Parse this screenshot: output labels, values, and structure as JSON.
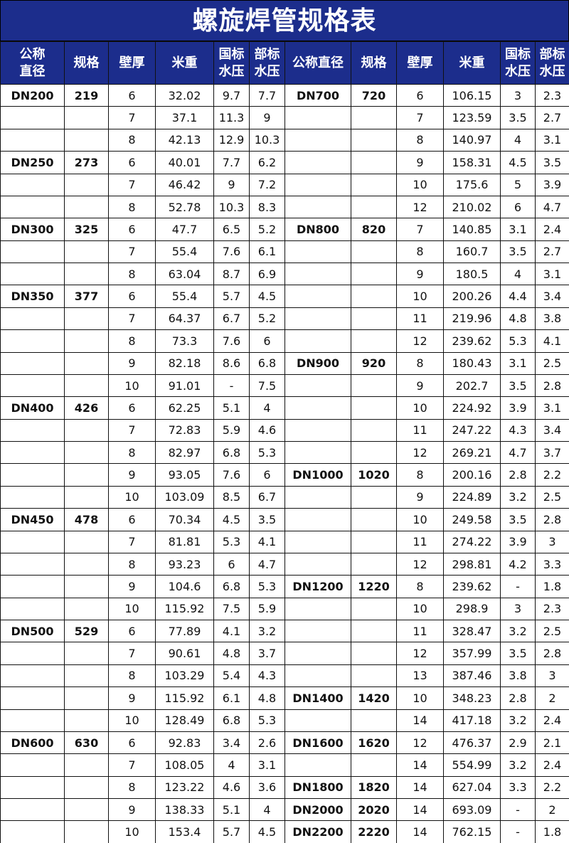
{
  "title": "螺旋焊管规格表",
  "colors": {
    "header_bg": "#1c2d8c",
    "header_text": "#ffffff"
  },
  "headers": [
    "公称\n直径",
    "规格",
    "壁厚",
    "米重",
    "国标\n水压",
    "部标\n水压",
    "公称直径",
    "规格",
    "壁厚",
    "米重",
    "国标\n水压",
    "部标\n水压"
  ],
  "left_rows": [
    [
      "DN200",
      "219",
      "6",
      "32.02",
      "9.7",
      "7.7"
    ],
    [
      "",
      "",
      "7",
      "37.1",
      "11.3",
      "9"
    ],
    [
      "",
      "",
      "8",
      "42.13",
      "12.9",
      "10.3"
    ],
    [
      "DN250",
      "273",
      "6",
      "40.01",
      "7.7",
      "6.2"
    ],
    [
      "",
      "",
      "7",
      "46.42",
      "9",
      "7.2"
    ],
    [
      "",
      "",
      "8",
      "52.78",
      "10.3",
      "8.3"
    ],
    [
      "DN300",
      "325",
      "6",
      "47.7",
      "6.5",
      "5.2"
    ],
    [
      "",
      "",
      "7",
      "55.4",
      "7.6",
      "6.1"
    ],
    [
      "",
      "",
      "8",
      "63.04",
      "8.7",
      "6.9"
    ],
    [
      "DN350",
      "377",
      "6",
      "55.4",
      "5.7",
      "4.5"
    ],
    [
      "",
      "",
      "7",
      "64.37",
      "6.7",
      "5.2"
    ],
    [
      "",
      "",
      "8",
      "73.3",
      "7.6",
      "6"
    ],
    [
      "",
      "",
      "9",
      "82.18",
      "8.6",
      "6.8"
    ],
    [
      "",
      "",
      "10",
      "91.01",
      "-",
      "7.5"
    ],
    [
      "DN400",
      "426",
      "6",
      "62.25",
      "5.1",
      "4"
    ],
    [
      "",
      "",
      "7",
      "72.83",
      "5.9",
      "4.6"
    ],
    [
      "",
      "",
      "8",
      "82.97",
      "6.8",
      "5.3"
    ],
    [
      "",
      "",
      "9",
      "93.05",
      "7.6",
      "6"
    ],
    [
      "",
      "",
      "10",
      "103.09",
      "8.5",
      "6.7"
    ],
    [
      "DN450",
      "478",
      "6",
      "70.34",
      "4.5",
      "3.5"
    ],
    [
      "",
      "",
      "7",
      "81.81",
      "5.3",
      "4.1"
    ],
    [
      "",
      "",
      "8",
      "93.23",
      "6",
      "4.7"
    ],
    [
      "",
      "",
      "9",
      "104.6",
      "6.8",
      "5.3"
    ],
    [
      "",
      "",
      "10",
      "115.92",
      "7.5",
      "5.9"
    ],
    [
      "DN500",
      "529",
      "6",
      "77.89",
      "4.1",
      "3.2"
    ],
    [
      "",
      "",
      "7",
      "90.61",
      "4.8",
      "3.7"
    ],
    [
      "",
      "",
      "8",
      "103.29",
      "5.4",
      "4.3"
    ],
    [
      "",
      "",
      "9",
      "115.92",
      "6.1",
      "4.8"
    ],
    [
      "",
      "",
      "10",
      "128.49",
      "6.8",
      "5.3"
    ],
    [
      "DN600",
      "630",
      "6",
      "92.83",
      "3.4",
      "2.6"
    ],
    [
      "",
      "",
      "7",
      "108.05",
      "4",
      "3.1"
    ],
    [
      "",
      "",
      "8",
      "123.22",
      "4.6",
      "3.6"
    ],
    [
      "",
      "",
      "9",
      "138.33",
      "5.1",
      "4"
    ],
    [
      "",
      "",
      "10",
      "153.4",
      "5.7",
      "4.5"
    ]
  ],
  "right_rows": [
    [
      "DN700",
      "720",
      "6",
      "106.15",
      "3",
      "2.3"
    ],
    [
      "",
      "",
      "7",
      "123.59",
      "3.5",
      "2.7"
    ],
    [
      "",
      "",
      "8",
      "140.97",
      "4",
      "3.1"
    ],
    [
      "",
      "",
      "9",
      "158.31",
      "4.5",
      "3.5"
    ],
    [
      "",
      "",
      "10",
      "175.6",
      "5",
      "3.9"
    ],
    [
      "",
      "",
      "12",
      "210.02",
      "6",
      "4.7"
    ],
    [
      "DN800",
      "820",
      "7",
      "140.85",
      "3.1",
      "2.4"
    ],
    [
      "",
      "",
      "8",
      "160.7",
      "3.5",
      "2.7"
    ],
    [
      "",
      "",
      "9",
      "180.5",
      "4",
      "3.1"
    ],
    [
      "",
      "",
      "10",
      "200.26",
      "4.4",
      "3.4"
    ],
    [
      "",
      "",
      "11",
      "219.96",
      "4.8",
      "3.8"
    ],
    [
      "",
      "",
      "12",
      "239.62",
      "5.3",
      "4.1"
    ],
    [
      "DN900",
      "920",
      "8",
      "180.43",
      "3.1",
      "2.5"
    ],
    [
      "",
      "",
      "9",
      "202.7",
      "3.5",
      "2.8"
    ],
    [
      "",
      "",
      "10",
      "224.92",
      "3.9",
      "3.1"
    ],
    [
      "",
      "",
      "11",
      "247.22",
      "4.3",
      "3.4"
    ],
    [
      "",
      "",
      "12",
      "269.21",
      "4.7",
      "3.7"
    ],
    [
      "DN1000",
      "1020",
      "8",
      "200.16",
      "2.8",
      "2.2"
    ],
    [
      "",
      "",
      "9",
      "224.89",
      "3.2",
      "2.5"
    ],
    [
      "",
      "",
      "10",
      "249.58",
      "3.5",
      "2.8"
    ],
    [
      "",
      "",
      "11",
      "274.22",
      "3.9",
      "3"
    ],
    [
      "",
      "",
      "12",
      "298.81",
      "4.2",
      "3.3"
    ],
    [
      "DN1200",
      "1220",
      "8",
      "239.62",
      "-",
      "1.8"
    ],
    [
      "",
      "",
      "10",
      "298.9",
      "3",
      "2.3"
    ],
    [
      "",
      "",
      "11",
      "328.47",
      "3.2",
      "2.5"
    ],
    [
      "",
      "",
      "12",
      "357.99",
      "3.5",
      "2.8"
    ],
    [
      "",
      "",
      "13",
      "387.46",
      "3.8",
      "3"
    ],
    [
      "DN1400",
      "1420",
      "10",
      "348.23",
      "2.8",
      "2"
    ],
    [
      "",
      "",
      "14",
      "417.18",
      "3.2",
      "2.4"
    ],
    [
      "DN1600",
      "1620",
      "12",
      "476.37",
      "2.9",
      "2.1"
    ],
    [
      "",
      "",
      "14",
      "554.99",
      "3.2",
      "2.4"
    ],
    [
      "DN1800",
      "1820",
      "14",
      "627.04",
      "3.3",
      "2.2"
    ],
    [
      "DN2000",
      "2020",
      "14",
      "693.09",
      "-",
      "2"
    ],
    [
      "DN2200",
      "2220",
      "14",
      "762.15",
      "-",
      "1.8"
    ]
  ]
}
